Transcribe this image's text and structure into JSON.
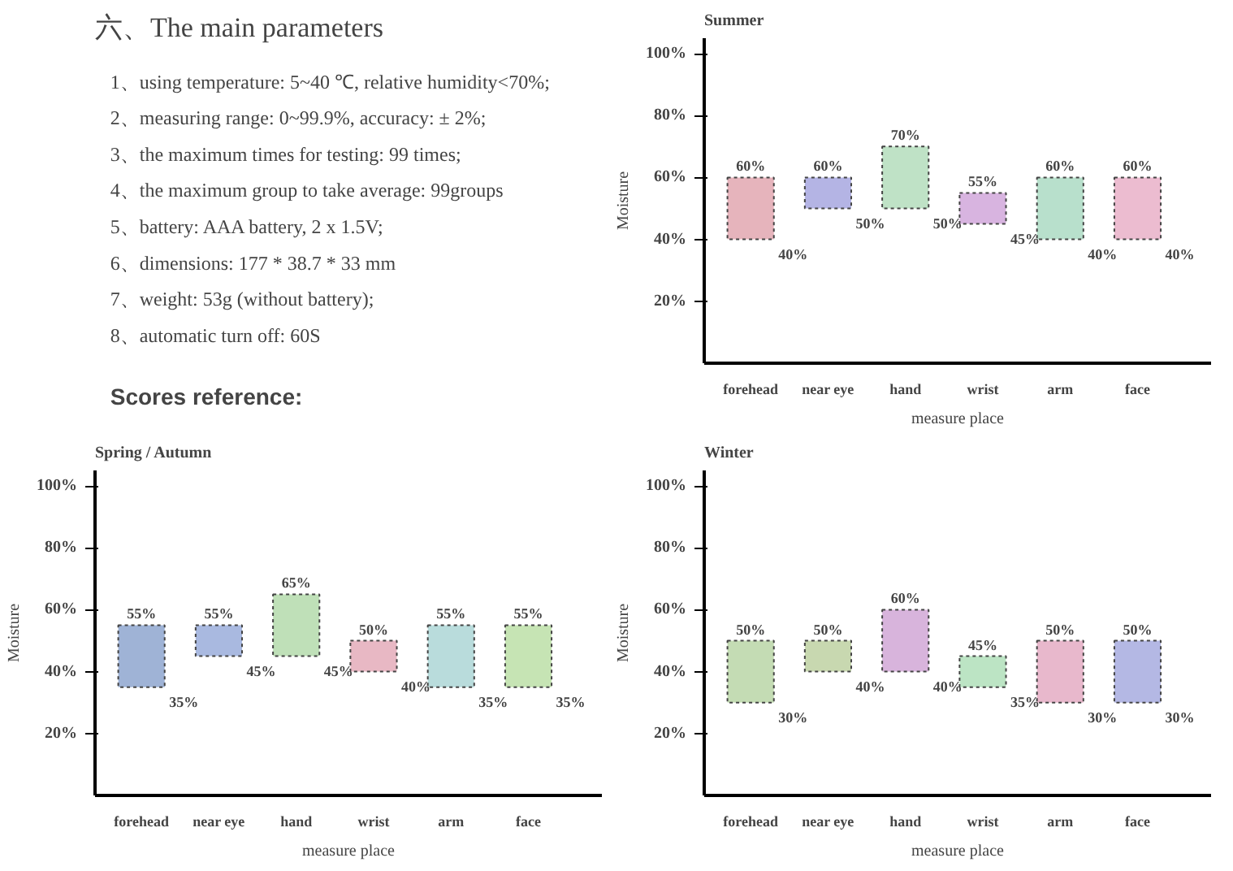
{
  "chart_data": [
    {
      "type": "other",
      "title": "六、The main parameters",
      "annotations": [
        "1、using temperature: 5~40 ℃, relative humidity<70%;",
        "2、measuring range: 0~99.9%, accuracy: ± 2%;",
        "3、the maximum times for testing: 99 times;",
        "4、the maximum group to take average: 99groups",
        "5、battery: AAA battery, 2 x 1.5V;",
        "6、dimensions: 177 * 38.7 * 33 mm",
        "7、weight: 53g (without battery);",
        "8、automatic turn off: 60S",
        "Scores reference:"
      ]
    },
    {
      "type": "bar",
      "title": "Spring / Autumn",
      "ylabel": "Moisture",
      "xlabel": "measure place",
      "categories": [
        "forehead",
        "near eye",
        "hand",
        "wrist",
        "arm",
        "face"
      ],
      "base": [
        35,
        45,
        45,
        40,
        35,
        35
      ],
      "values": [
        20,
        10,
        20,
        10,
        20,
        20
      ],
      "colors": [
        "#9fb3d6",
        "#a9b9e0",
        "#bfe0b8",
        "#e8b8c4",
        "#b9dcdc",
        "#c6e4b4"
      ],
      "ylim": [
        0,
        105
      ],
      "yticks": [
        {
          "value": 20,
          "label": "20%"
        },
        {
          "value": 40,
          "label": "40%"
        },
        {
          "value": 60,
          "label": "60%"
        },
        {
          "value": 80,
          "label": "80%"
        },
        {
          "value": 100,
          "label": "100%"
        }
      ],
      "grid": false,
      "annotations": [
        {
          "text": "55%",
          "x": "forehead",
          "y": 55
        },
        {
          "text": "35%",
          "x": "forehead",
          "y": 35
        },
        {
          "text": "55%",
          "x": "near eye",
          "y": 55
        },
        {
          "text": "45%",
          "x": "near eye",
          "y": 45
        },
        {
          "text": "65%",
          "x": "hand",
          "y": 65
        },
        {
          "text": "45%",
          "x": "hand",
          "y": 45
        },
        {
          "text": "50%",
          "x": "wrist",
          "y": 50
        },
        {
          "text": "40%",
          "x": "wrist",
          "y": 40
        },
        {
          "text": "55%",
          "x": "arm",
          "y": 55
        },
        {
          "text": "35%",
          "x": "arm",
          "y": 35
        },
        {
          "text": "55%",
          "x": "face",
          "y": 55
        },
        {
          "text": "35%",
          "x": "face",
          "y": 35
        }
      ]
    },
    {
      "type": "bar",
      "title": "Summer",
      "ylabel": "Moisture",
      "xlabel": "measure place",
      "categories": [
        "forehead",
        "near eye",
        "hand",
        "wrist",
        "arm",
        "face"
      ],
      "base": [
        40,
        50,
        50,
        45,
        40,
        40
      ],
      "values": [
        20,
        10,
        20,
        10,
        20,
        20
      ],
      "colors": [
        "#e6b4bc",
        "#b4b4e4",
        "#bfe2c6",
        "#d8b4e0",
        "#b8e0cc",
        "#ecbcd0"
      ],
      "ylim": [
        0,
        105
      ],
      "yticks": [
        {
          "value": 20,
          "label": "20%"
        },
        {
          "value": 40,
          "label": "40%"
        },
        {
          "value": 60,
          "label": "60%"
        },
        {
          "value": 80,
          "label": "80%"
        },
        {
          "value": 100,
          "label": "100%"
        }
      ],
      "grid": false,
      "annotations": [
        {
          "text": "60%",
          "x": "forehead",
          "y": 60
        },
        {
          "text": "40%",
          "x": "forehead",
          "y": 40
        },
        {
          "text": "60%",
          "x": "near eye",
          "y": 60
        },
        {
          "text": "50%",
          "x": "near eye",
          "y": 50
        },
        {
          "text": "70%",
          "x": "hand",
          "y": 70
        },
        {
          "text": "50%",
          "x": "hand",
          "y": 50
        },
        {
          "text": "55%",
          "x": "wrist",
          "y": 55
        },
        {
          "text": "45%",
          "x": "wrist",
          "y": 45
        },
        {
          "text": "60%",
          "x": "arm",
          "y": 60
        },
        {
          "text": "40%",
          "x": "arm",
          "y": 40
        },
        {
          "text": "60%",
          "x": "face",
          "y": 60
        },
        {
          "text": "40%",
          "x": "face",
          "y": 40
        }
      ]
    },
    {
      "type": "bar",
      "title": "Winter",
      "ylabel": "Moisture",
      "xlabel": "measure place",
      "categories": [
        "forehead",
        "near eye",
        "hand",
        "wrist",
        "arm",
        "face"
      ],
      "base": [
        30,
        40,
        40,
        35,
        30,
        30
      ],
      "values": [
        20,
        10,
        20,
        10,
        20,
        20
      ],
      "colors": [
        "#c4dcb4",
        "#c8d8b0",
        "#d8b4dc",
        "#bce4c4",
        "#e8b8cc",
        "#b4b8e4"
      ],
      "ylim": [
        0,
        105
      ],
      "yticks": [
        {
          "value": 20,
          "label": "20%"
        },
        {
          "value": 40,
          "label": "40%"
        },
        {
          "value": 60,
          "label": "60%"
        },
        {
          "value": 80,
          "label": "80%"
        },
        {
          "value": 100,
          "label": "100%"
        }
      ],
      "grid": false,
      "annotations": [
        {
          "text": "50%",
          "x": "forehead",
          "y": 50
        },
        {
          "text": "30%",
          "x": "forehead",
          "y": 30
        },
        {
          "text": "50%",
          "x": "near eye",
          "y": 50
        },
        {
          "text": "40%",
          "x": "near eye",
          "y": 40
        },
        {
          "text": "60%",
          "x": "hand",
          "y": 60
        },
        {
          "text": "40%",
          "x": "hand",
          "y": 40
        },
        {
          "text": "45%",
          "x": "wrist",
          "y": 45
        },
        {
          "text": "35%",
          "x": "wrist",
          "y": 35
        },
        {
          "text": "50%",
          "x": "arm",
          "y": 50
        },
        {
          "text": "30%",
          "x": "arm",
          "y": 30
        },
        {
          "text": "50%",
          "x": "face",
          "y": 50
        },
        {
          "text": "30%",
          "x": "face",
          "y": 30
        }
      ]
    }
  ]
}
